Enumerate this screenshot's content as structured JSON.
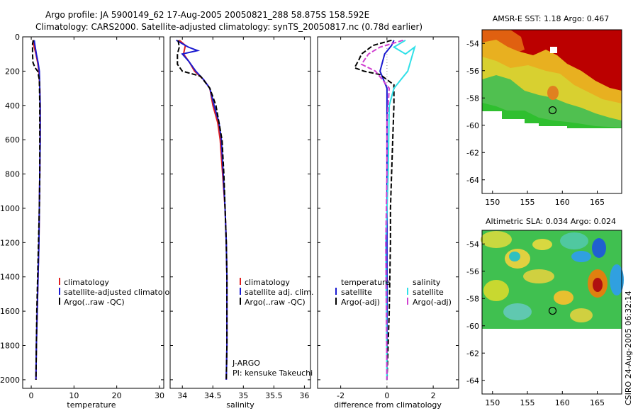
{
  "header": {
    "line1": "Argo profile: JA 5900149_62 17-Aug-2005 20050821_288 58.875S 158.592E",
    "line2": "Climatology: CARS2000. Satellite-adjusted climatology: synTS_20050817.nc (0.78d earlier)"
  },
  "side_label": "CSIRO 24-Aug-2005 06:32:14",
  "colors": {
    "climatology": "#e02020",
    "satellite": "#1a1ad0",
    "argo": "#000000",
    "sal_sat": "#30e0e8",
    "sal_argo": "#d040d0"
  },
  "chart_data": [
    {
      "type": "line",
      "id": "temperature",
      "xlabel": "temperature",
      "ylabel": "",
      "xlim": [
        -2,
        31
      ],
      "ylim": [
        2050,
        0
      ],
      "xticks": [
        0,
        10,
        20,
        30
      ],
      "yticks": [
        0,
        200,
        400,
        600,
        800,
        1000,
        1200,
        1400,
        1600,
        1800,
        2000
      ],
      "legend": [
        "climatology",
        "satellite-adjusted climatology",
        "Argo(..raw -QC)"
      ],
      "series": [
        {
          "name": "climatology",
          "style": "solid",
          "color": "#e02020",
          "points": [
            [
              0.4,
              20
            ],
            [
              0.5,
              40
            ],
            [
              1.1,
              100
            ],
            [
              1.5,
              150
            ],
            [
              1.8,
              200
            ],
            [
              2.0,
              300
            ],
            [
              2.1,
              400
            ],
            [
              2.1,
              600
            ],
            [
              2.0,
              800
            ],
            [
              1.9,
              1000
            ],
            [
              1.8,
              1200
            ],
            [
              1.6,
              1400
            ],
            [
              1.4,
              1600
            ],
            [
              1.2,
              1800
            ],
            [
              1.1,
              2000
            ]
          ]
        },
        {
          "name": "satellite-adjusted climatology",
          "style": "solid",
          "color": "#1a1ad0",
          "points": [
            [
              0.7,
              20
            ],
            [
              0.8,
              40
            ],
            [
              1.2,
              100
            ],
            [
              1.6,
              150
            ],
            [
              1.9,
              200
            ],
            [
              2.0,
              300
            ],
            [
              2.1,
              400
            ],
            [
              2.1,
              600
            ],
            [
              2.0,
              800
            ],
            [
              1.9,
              1000
            ],
            [
              1.8,
              1200
            ],
            [
              1.6,
              1400
            ],
            [
              1.4,
              1600
            ],
            [
              1.2,
              1800
            ],
            [
              1.1,
              2000
            ]
          ]
        },
        {
          "name": "Argo(..raw -QC)",
          "style": "dashed",
          "color": "#000000",
          "points": [
            [
              0.5,
              20
            ],
            [
              0.3,
              40
            ],
            [
              0.3,
              100
            ],
            [
              0.4,
              150
            ],
            [
              0.9,
              180
            ],
            [
              1.5,
              200
            ],
            [
              1.9,
              250
            ],
            [
              2.0,
              400
            ],
            [
              2.0,
              800
            ],
            [
              1.9,
              1000
            ],
            [
              1.7,
              1200
            ],
            [
              1.5,
              1400
            ],
            [
              1.3,
              1600
            ],
            [
              1.2,
              1800
            ],
            [
              1.1,
              2000
            ]
          ]
        }
      ]
    },
    {
      "type": "line",
      "id": "salinity",
      "xlabel": "salinity",
      "ylabel": "",
      "xlim": [
        33.8,
        36.1
      ],
      "ylim": [
        2050,
        0
      ],
      "xticks": [
        34,
        34.5,
        35,
        35.5,
        36
      ],
      "yticks": [
        0,
        200,
        400,
        600,
        800,
        1000,
        1200,
        1400,
        1600,
        1800,
        2000
      ],
      "legend": [
        "climatology",
        "satellite adj. clim.",
        "Argo(..raw -QC)"
      ],
      "annotations": [
        "J-ARGO",
        "PI: kensuke Takeuchi"
      ],
      "series": [
        {
          "name": "climatology",
          "style": "solid",
          "color": "#e02020",
          "points": [
            [
              33.95,
              20
            ],
            [
              34.05,
              50
            ],
            [
              34.02,
              100
            ],
            [
              34.12,
              150
            ],
            [
              34.2,
              200
            ],
            [
              34.35,
              250
            ],
            [
              34.45,
              300
            ],
            [
              34.5,
              400
            ],
            [
              34.58,
              500
            ],
            [
              34.62,
              600
            ],
            [
              34.66,
              800
            ],
            [
              34.7,
              1000
            ],
            [
              34.72,
              1200
            ],
            [
              34.73,
              1400
            ],
            [
              34.73,
              1600
            ],
            [
              34.73,
              1800
            ],
            [
              34.72,
              2000
            ]
          ]
        },
        {
          "name": "satellite adj. clim.",
          "style": "solid",
          "color": "#1a1ad0",
          "points": [
            [
              33.9,
              20
            ],
            [
              34.1,
              60
            ],
            [
              34.25,
              80
            ],
            [
              34.0,
              100
            ],
            [
              34.1,
              140
            ],
            [
              34.22,
              200
            ],
            [
              34.35,
              250
            ],
            [
              34.45,
              300
            ],
            [
              34.52,
              400
            ],
            [
              34.6,
              500
            ],
            [
              34.64,
              600
            ],
            [
              34.67,
              800
            ],
            [
              34.7,
              1000
            ],
            [
              34.72,
              1200
            ],
            [
              34.73,
              1400
            ],
            [
              34.73,
              1600
            ],
            [
              34.73,
              1800
            ],
            [
              34.72,
              2000
            ]
          ]
        },
        {
          "name": "Argo(..raw -QC)",
          "style": "dashed",
          "color": "#000000",
          "points": [
            [
              33.93,
              20
            ],
            [
              33.95,
              60
            ],
            [
              33.92,
              100
            ],
            [
              33.92,
              160
            ],
            [
              34.0,
              200
            ],
            [
              34.3,
              230
            ],
            [
              34.45,
              300
            ],
            [
              34.55,
              400
            ],
            [
              34.6,
              500
            ],
            [
              34.65,
              600
            ],
            [
              34.68,
              800
            ],
            [
              34.7,
              1000
            ],
            [
              34.72,
              1200
            ],
            [
              34.73,
              1400
            ],
            [
              34.73,
              1600
            ],
            [
              34.73,
              1800
            ],
            [
              34.72,
              2000
            ]
          ]
        }
      ]
    },
    {
      "type": "line",
      "id": "difference",
      "xlabel": "difference from climatology",
      "ylabel": "",
      "xlim": [
        -3,
        3.1
      ],
      "ylim": [
        2050,
        0
      ],
      "xticks": [
        -2,
        0,
        2
      ],
      "yticks": [
        0,
        200,
        400,
        600,
        800,
        1000,
        1200,
        1400,
        1600,
        1800,
        2000
      ],
      "legend_groups": [
        {
          "title": "temperature",
          "entries": [
            "satellite",
            "Argo(-adj)"
          ]
        },
        {
          "title": "salinity",
          "entries": [
            "satellite",
            "Argo(-adj)"
          ]
        }
      ],
      "series": [
        {
          "name": "temperature satellite",
          "style": "solid",
          "color": "#1a1ad0",
          "points": [
            [
              0.3,
              20
            ],
            [
              0.2,
              50
            ],
            [
              -0.1,
              100
            ],
            [
              -0.3,
              200
            ],
            [
              0.0,
              300
            ],
            [
              0.0,
              800
            ],
            [
              0.0,
              2000
            ]
          ]
        },
        {
          "name": "temperature Argo(-adj)",
          "style": "dashed",
          "color": "#000000",
          "points": [
            [
              0.2,
              20
            ],
            [
              -0.6,
              50
            ],
            [
              -1.1,
              100
            ],
            [
              -1.2,
              130
            ],
            [
              -1.4,
              180
            ],
            [
              -1.0,
              200
            ],
            [
              -0.3,
              220
            ],
            [
              0.3,
              280
            ],
            [
              0.3,
              400
            ],
            [
              0.25,
              600
            ],
            [
              0.2,
              800
            ],
            [
              0.15,
              1000
            ],
            [
              0.15,
              1200
            ],
            [
              0.1,
              1600
            ],
            [
              0.0,
              2000
            ]
          ]
        },
        {
          "name": "salinity satellite",
          "style": "solid",
          "color": "#30e0e8",
          "points": [
            [
              0.8,
              20
            ],
            [
              0.3,
              60
            ],
            [
              0.8,
              100
            ],
            [
              1.2,
              60
            ],
            [
              0.9,
              200
            ],
            [
              0.3,
              300
            ],
            [
              0.1,
              400
            ],
            [
              0.05,
              800
            ],
            [
              0.0,
              1000
            ],
            [
              -0.05,
              1200
            ],
            [
              0.0,
              2000
            ]
          ]
        },
        {
          "name": "salinity Argo(-adj)",
          "style": "dashed",
          "color": "#d040d0",
          "points": [
            [
              0.7,
              20
            ],
            [
              -0.3,
              60
            ],
            [
              -0.8,
              100
            ],
            [
              -1.1,
              160
            ],
            [
              -0.5,
              200
            ],
            [
              0.1,
              300
            ],
            [
              0.0,
              500
            ],
            [
              0.0,
              800
            ],
            [
              -0.05,
              1200
            ],
            [
              0.0,
              2000
            ]
          ]
        }
      ]
    },
    {
      "type": "heatmap",
      "id": "sst-map",
      "title": "AMSR-E SST: 1.18 Argo: 0.467",
      "xlim": [
        148.5,
        168.5
      ],
      "ylim": [
        -65,
        -53
      ],
      "xticks": [
        150,
        155,
        160,
        165
      ],
      "yticks": [
        -54,
        -56,
        -58,
        -60,
        -62,
        -64
      ],
      "marker": [
        158.6,
        -58.9
      ]
    },
    {
      "type": "heatmap",
      "id": "sla-map",
      "title": "Altimetric SLA: 0.034 Argo: 0.024",
      "xlim": [
        148.5,
        168.5
      ],
      "ylim": [
        -65,
        -53
      ],
      "xticks": [
        150,
        155,
        160,
        165
      ],
      "yticks": [
        -54,
        -56,
        -58,
        -60,
        -62,
        -64
      ],
      "marker": [
        158.6,
        -58.9
      ]
    }
  ]
}
